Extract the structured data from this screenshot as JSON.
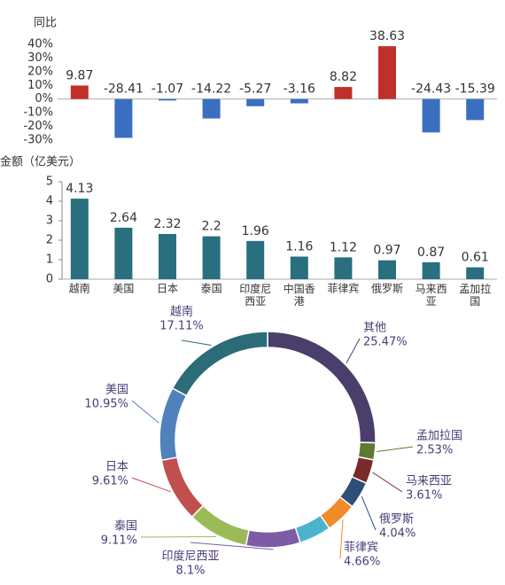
{
  "chart_data": [
    {
      "type": "bar",
      "title": "同比",
      "values": [
        9.87,
        -28.41,
        -1.07,
        -14.22,
        -5.27,
        -3.16,
        8.82,
        38.63,
        -24.43,
        -15.39
      ],
      "positive_color": "#c0302a",
      "negative_color": "#3a6fbf",
      "ylim": [
        -30,
        40
      ],
      "yticks": [
        {
          "value": 40,
          "label": "40%"
        },
        {
          "value": 30,
          "label": "30%"
        },
        {
          "value": 20,
          "label": "20%"
        },
        {
          "value": 10,
          "label": "10%"
        },
        {
          "value": 0,
          "label": "0%"
        },
        {
          "value": -10,
          "label": "-10%"
        },
        {
          "value": -20,
          "label": "-20%"
        },
        {
          "value": -30,
          "label": "-30%"
        }
      ]
    },
    {
      "type": "bar",
      "title": "金额（亿美元）",
      "categories": [
        "越南",
        "美国",
        "日本",
        "泰国",
        "印度尼西亚",
        "中国香港",
        "菲律宾",
        "俄罗斯",
        "马来西亚",
        "孟加拉国"
      ],
      "values": [
        4.13,
        2.64,
        2.32,
        2.2,
        1.96,
        1.16,
        1.12,
        0.97,
        0.87,
        0.61
      ],
      "color": "#2a6f7f",
      "ylim": [
        0,
        5
      ],
      "yticks": [
        0,
        1,
        2,
        3,
        4,
        5
      ]
    },
    {
      "type": "donut",
      "categories": [
        "其他",
        "孟加拉国",
        "马来西亚",
        "俄罗斯",
        "菲律宾",
        null,
        "印度尼西亚",
        "泰国",
        "日本",
        "美国",
        "越南"
      ],
      "values": [
        25.47,
        2.53,
        3.61,
        4.04,
        4.66,
        4.81,
        8.1,
        9.11,
        9.61,
        10.95,
        17.11
      ],
      "value_labels": [
        "25.47%",
        "2.53%",
        "3.61%",
        "4.04%",
        "4.66%",
        null,
        "8.1%",
        "9.11%",
        "9.61%",
        "10.95%",
        "17.11%"
      ],
      "colors": [
        "#4a3f6b",
        "#5d7a2e",
        "#7a2a2a",
        "#2f4f78",
        "#f08a2a",
        "#4bb3cc",
        "#7d5ba6",
        "#9bbb59",
        "#c0504d",
        "#4f81bd",
        "#2b6c78"
      ]
    }
  ]
}
